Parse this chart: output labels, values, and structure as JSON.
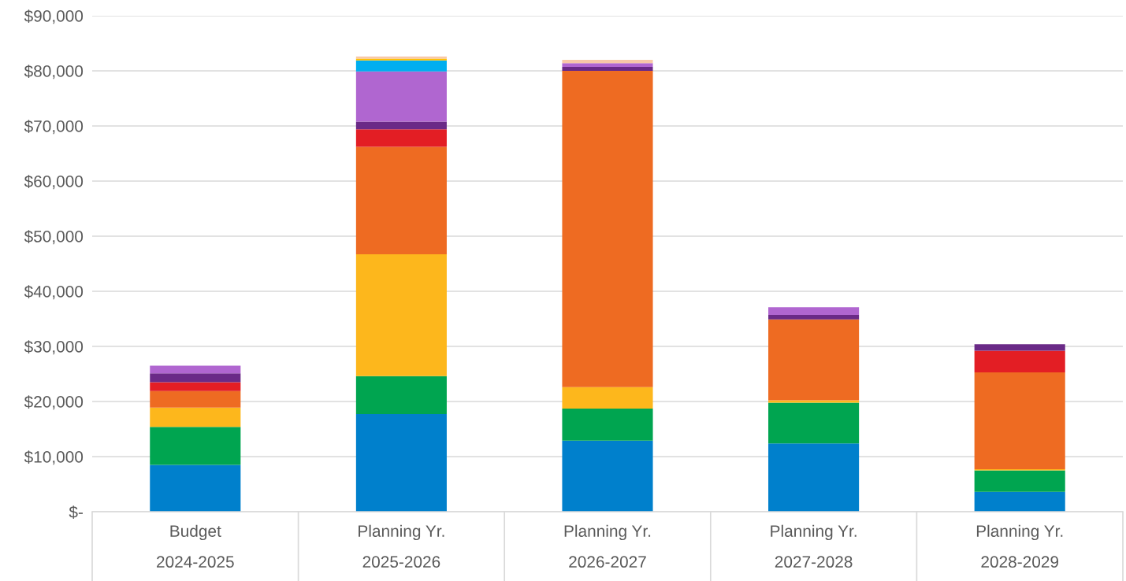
{
  "chart_data": {
    "type": "bar",
    "stacked": true,
    "categories": [
      "Budget\n2024-2025",
      "Planning Yr.\n2025-2026",
      "Planning Yr.\n2026-2027",
      "Planning Yr.\n2027-2028",
      "Planning Yr.\n2028-2029"
    ],
    "series": [
      {
        "color": "#0080cc",
        "values": [
          8500,
          17700,
          12900,
          12400,
          3600
        ]
      },
      {
        "color": "#00a550",
        "values": [
          6900,
          6900,
          5800,
          7400,
          3900
        ]
      },
      {
        "color": "#fdb71c",
        "values": [
          3500,
          22100,
          3900,
          400,
          200
        ]
      },
      {
        "color": "#ee6b22",
        "values": [
          3000,
          19500,
          57400,
          14700,
          17600
        ]
      },
      {
        "color": "#e31e24",
        "values": [
          1600,
          3200,
          0,
          0,
          3900
        ]
      },
      {
        "color": "#6a2a87",
        "values": [
          1600,
          1400,
          700,
          800,
          1200
        ]
      },
      {
        "color": "#b066d0",
        "values": [
          1400,
          9100,
          700,
          1400,
          0
        ]
      },
      {
        "color": "#00aeef",
        "values": [
          0,
          2000,
          0,
          0,
          0
        ]
      },
      {
        "color": "#ffc000",
        "values": [
          0,
          300,
          0,
          0,
          0
        ]
      },
      {
        "color": "#f8c8a8",
        "values": [
          0,
          400,
          600,
          0,
          0
        ]
      }
    ],
    "ylim": [
      0,
      90000
    ],
    "yticks": [
      {
        "value": 0,
        "label": "$-"
      },
      {
        "value": 10000,
        "label": "$10,000"
      },
      {
        "value": 20000,
        "label": "$20,000"
      },
      {
        "value": 30000,
        "label": "$30,000"
      },
      {
        "value": 40000,
        "label": "$40,000"
      },
      {
        "value": 50000,
        "label": "$50,000"
      },
      {
        "value": 60000,
        "label": "$60,000"
      },
      {
        "value": 70000,
        "label": "$70,000"
      },
      {
        "value": 80000,
        "label": "$80,000"
      },
      {
        "value": 90000,
        "label": "$90,000"
      }
    ],
    "grid": "y",
    "legend": false
  }
}
